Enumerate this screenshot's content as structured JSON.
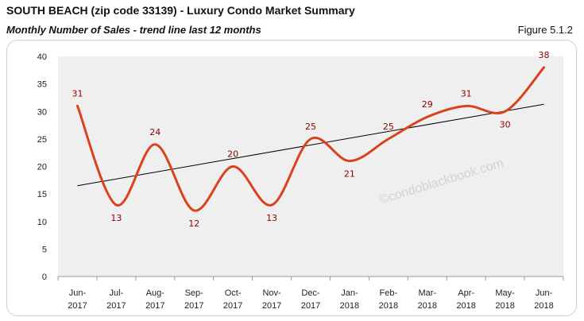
{
  "header": {
    "title": "SOUTH BEACH (zip code 33139) - Luxury Condo Market Summary",
    "subtitle": "Monthly Number of Sales - trend line last 12 months",
    "figure": "Figure 5.1.2"
  },
  "watermark": "©condoblackbook.com",
  "colors": {
    "series": "#d9421c",
    "trend": "#000000",
    "plot_bg": "#efefef",
    "label": "#8b0000"
  },
  "chart_data": {
    "type": "line",
    "title": "Monthly Number of Sales - trend line last 12 months",
    "categories": [
      [
        "Jun-",
        "2017"
      ],
      [
        "Jul-",
        "2017"
      ],
      [
        "Aug-",
        "2017"
      ],
      [
        "Sep-",
        "2017"
      ],
      [
        "Oct-",
        "2017"
      ],
      [
        "Nov-",
        "2017"
      ],
      [
        "Dec-",
        "2017"
      ],
      [
        "Jan-",
        "2018"
      ],
      [
        "Feb-",
        "2018"
      ],
      [
        "Mar-",
        "2018"
      ],
      [
        "Apr-",
        "2018"
      ],
      [
        "May-",
        "2018"
      ],
      [
        "Jun-",
        "2018"
      ]
    ],
    "values": [
      31,
      13,
      24,
      12,
      20,
      13,
      25,
      21,
      25,
      29,
      31,
      30,
      38
    ],
    "trend": {
      "start": 16.5,
      "end": 31.3
    },
    "ylim": [
      0,
      40
    ],
    "yticks": [
      0,
      5,
      10,
      15,
      20,
      25,
      30,
      35,
      40
    ],
    "grid": false,
    "legend": "none"
  }
}
